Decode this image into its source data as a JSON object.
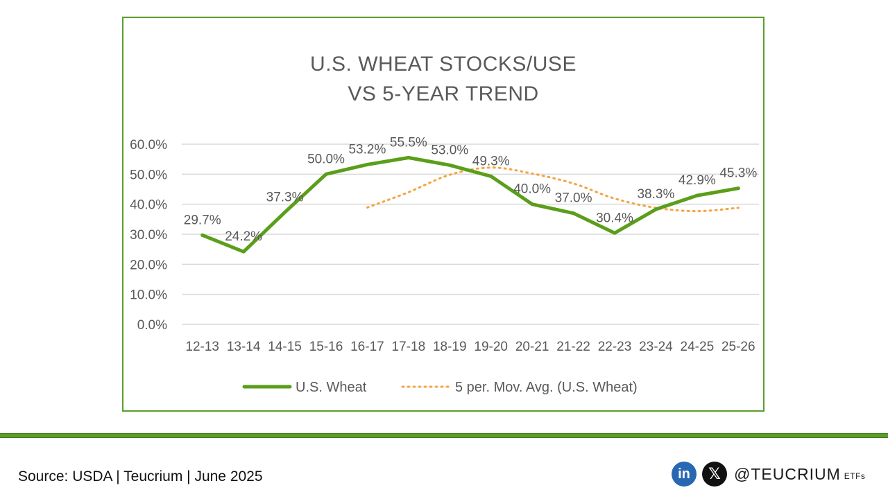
{
  "chart_data": {
    "type": "line",
    "title": [
      "U.S. WHEAT STOCKS/USE",
      "VS 5-YEAR TREND"
    ],
    "categories": [
      "12-13",
      "13-14",
      "14-15",
      "15-16",
      "16-17",
      "17-18",
      "18-19",
      "19-20",
      "20-21",
      "21-22",
      "22-23",
      "23-24",
      "24-25",
      "25-26"
    ],
    "series": [
      {
        "name": "U.S. Wheat",
        "values": [
          29.7,
          24.2,
          37.3,
          50.0,
          53.2,
          55.5,
          53.0,
          49.3,
          40.0,
          37.0,
          30.4,
          38.3,
          42.9,
          45.3
        ],
        "data_labels": [
          "29.7%",
          "24.2%",
          "37.3%",
          "50.0%",
          "53.2%",
          "55.5%",
          "53.0%",
          "49.3%",
          "40.0%",
          "37.0%",
          "30.4%",
          "38.3%",
          "42.9%",
          "45.3%"
        ],
        "color": "#5a9e1a",
        "style": "solid"
      },
      {
        "name": "5 per. Mov. Avg. (U.S. Wheat)",
        "values": [
          null,
          null,
          null,
          null,
          38.9,
          44.0,
          49.8,
          52.2,
          50.2,
          46.9,
          41.9,
          38.8,
          37.7,
          38.8
        ],
        "color": "#f4a442",
        "style": "dotted"
      }
    ],
    "y_ticks": [
      "0.0%",
      "10.0%",
      "20.0%",
      "30.0%",
      "40.0%",
      "50.0%",
      "60.0%"
    ],
    "ylim": [
      0,
      60
    ],
    "grid": true,
    "legend": "bottom"
  },
  "footer": {
    "source": "Source: USDA | Teucrium | June 2025",
    "linkedin_glyph": "in",
    "x_glyph": "𝕏",
    "handle": "@TEUCRIUM",
    "handle_suffix": "ETFs"
  },
  "colors": {
    "frame": "#5a9e2a",
    "divider": "#5a9e2a",
    "grid": "#d9d9d9",
    "text": "#595959"
  }
}
